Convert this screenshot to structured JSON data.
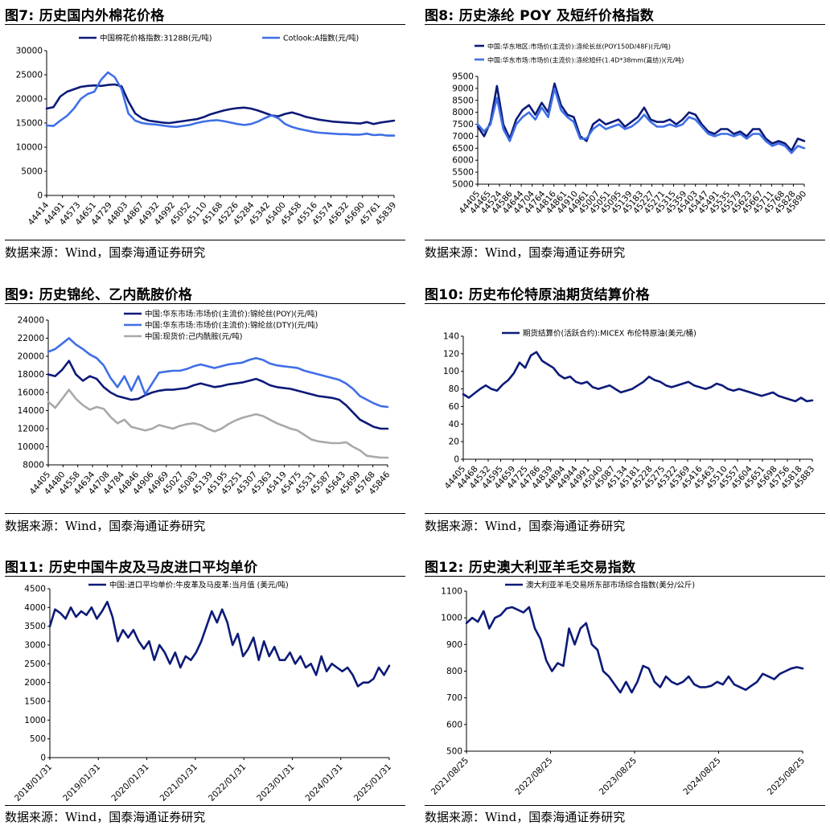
{
  "colors": {
    "dark": "#0c1a78",
    "mid": "#3f6fe6",
    "gray": "#a9a9a9"
  },
  "source": "数据来源：Wind，国泰海通证券研究",
  "panels": [
    {
      "title": "图7:  历史国内外棉花价格",
      "chart_data": {
        "type": "line",
        "ylim": [
          0,
          30000
        ],
        "yticks": [
          0,
          5000,
          10000,
          15000,
          20000,
          25000,
          30000
        ],
        "xticklabels": [
          "44414",
          "44491",
          "44573",
          "44651",
          "44729",
          "44803",
          "44867",
          "44932",
          "44992",
          "45052",
          "45110",
          "45168",
          "45226",
          "45284",
          "45342",
          "45400",
          "45458",
          "45516",
          "45574",
          "45632",
          "45690",
          "45761",
          "45839"
        ],
        "series": [
          {
            "name": "中国棉花价格指数:3128B(元/吨)",
            "color": "dark",
            "values": [
              18000,
              18300,
              20500,
              21500,
              22000,
              22500,
              22700,
              22800,
              22700,
              22900,
              23000,
              22600,
              19500,
              17000,
              16000,
              15500,
              15300,
              15100,
              15000,
              15200,
              15400,
              15600,
              15800,
              16200,
              16800,
              17200,
              17600,
              17900,
              18100,
              18200,
              18000,
              17600,
              17100,
              16600,
              16400,
              16900,
              17200,
              16800,
              16300,
              16000,
              15700,
              15500,
              15300,
              15200,
              15100,
              15000,
              14900,
              15200,
              14800,
              15100,
              15300,
              15500
            ]
          },
          {
            "name": "Cotlook:A指数(元/吨)",
            "color": "mid",
            "values": [
              14500,
              14400,
              15500,
              16500,
              18000,
              20000,
              21000,
              21500,
              24000,
              25500,
              24500,
              22000,
              17000,
              15500,
              15000,
              14800,
              14700,
              14500,
              14300,
              14200,
              14400,
              14600,
              15000,
              15300,
              15500,
              15600,
              15400,
              15100,
              14800,
              14600,
              14800,
              15300,
              16000,
              16600,
              16000,
              14800,
              14200,
              13800,
              13500,
              13200,
              13000,
              12900,
              12800,
              12700,
              12700,
              12600,
              12600,
              12800,
              12500,
              12600,
              12400,
              12400
            ]
          }
        ]
      }
    },
    {
      "title": "图8:  历史涤纶 POY 及短纤价格指数",
      "chart_data": {
        "type": "line",
        "ylim": [
          5000,
          9500
        ],
        "yticks": [
          5000,
          5500,
          6000,
          6500,
          7000,
          7500,
          8000,
          8500,
          9000,
          9500
        ],
        "xticklabels": [
          "44405",
          "44465",
          "44524",
          "44586",
          "44644",
          "44704",
          "44764",
          "44816",
          "44861",
          "44910",
          "44961",
          "45007",
          "45051",
          "45095",
          "45139",
          "45183",
          "45227",
          "45271",
          "45315",
          "45359",
          "45403",
          "45447",
          "45491",
          "45535",
          "45579",
          "45623",
          "45667",
          "45711",
          "45768",
          "45828",
          "45890"
        ],
        "series": [
          {
            "name": "中国:华东地区:市场价(主流价):涤纶长丝(POY150D/48F)(元/吨)",
            "color": "dark",
            "values": [
              7400,
              7000,
              7600,
              9100,
              7500,
              6900,
              7700,
              8100,
              8300,
              7900,
              8400,
              8000,
              9200,
              8300,
              7900,
              7800,
              7000,
              6800,
              7500,
              7700,
              7500,
              7600,
              7700,
              7400,
              7600,
              7800,
              8200,
              7700,
              7600,
              7600,
              7700,
              7500,
              7700,
              8000,
              7900,
              7500,
              7200,
              7100,
              7300,
              7300,
              7100,
              7200,
              7000,
              7300,
              7300,
              6900,
              6700,
              6800,
              6700,
              6400,
              6900,
              6800
            ]
          },
          {
            "name": "中国:华东市场:市场价(主流价):涤纶短纤(1.4D*38mm(直纺))(元/吨)",
            "color": "mid",
            "values": [
              7500,
              7200,
              7500,
              8600,
              7300,
              6800,
              7500,
              7800,
              8000,
              7700,
              8200,
              7800,
              9000,
              8100,
              7800,
              7600,
              6900,
              6900,
              7300,
              7500,
              7300,
              7400,
              7500,
              7300,
              7400,
              7600,
              7900,
              7600,
              7400,
              7400,
              7500,
              7400,
              7500,
              7800,
              7700,
              7400,
              7100,
              7000,
              7100,
              7100,
              7000,
              7100,
              6900,
              7100,
              7100,
              6800,
              6600,
              6700,
              6600,
              6300,
              6600,
              6500
            ]
          }
        ]
      }
    },
    {
      "title": "图9:  历史锦纶、乙内酰胺价格",
      "chart_data": {
        "type": "line",
        "ylim": [
          8000,
          24000
        ],
        "yticks": [
          8000,
          10000,
          12000,
          14000,
          16000,
          18000,
          20000,
          22000,
          24000
        ],
        "xticklabels": [
          "44405",
          "44480",
          "44558",
          "44634",
          "44708",
          "44784",
          "44846",
          "44906",
          "44969",
          "45027",
          "45083",
          "45139",
          "45195",
          "45251",
          "45307",
          "45363",
          "45419",
          "45475",
          "45531",
          "45587",
          "45643",
          "45699",
          "45768",
          "45846"
        ],
        "series": [
          {
            "name": "中国:华东市场:市场价(主流价):锦纶丝(POY)(元/吨)",
            "color": "dark",
            "values": [
              18000,
              17800,
              18500,
              19500,
              18000,
              17300,
              17800,
              17500,
              16600,
              16000,
              15600,
              15400,
              15200,
              15300,
              15700,
              16000,
              16200,
              16300,
              16300,
              16400,
              16500,
              16800,
              17000,
              16800,
              16600,
              16700,
              16900,
              17000,
              17100,
              17300,
              17500,
              17200,
              16800,
              16600,
              16500,
              16400,
              16200,
              16000,
              15800,
              15600,
              15500,
              15400,
              15200,
              14600,
              13800,
              13000,
              12600,
              12200,
              12000,
              12000
            ]
          },
          {
            "name": "中国:华东市场:市场价(主流价):锦纶丝(DTY)(元/吨)",
            "color": "mid",
            "values": [
              20500,
              20800,
              21400,
              22000,
              21300,
              20800,
              20200,
              19800,
              19000,
              17600,
              16600,
              17800,
              16200,
              17800,
              15800,
              17000,
              18200,
              18300,
              18400,
              18400,
              18600,
              18900,
              19100,
              18900,
              18700,
              18900,
              19100,
              19200,
              19300,
              19600,
              19800,
              19600,
              19200,
              19000,
              18900,
              18800,
              18700,
              18400,
              18200,
              18000,
              17800,
              17600,
              17400,
              17000,
              16400,
              15600,
              15200,
              14800,
              14500,
              14400
            ]
          },
          {
            "name": "中国:现货价:己内酰胺(元/吨)",
            "color": "gray",
            "values": [
              15000,
              14300,
              15300,
              16300,
              15300,
              14600,
              14100,
              14400,
              14200,
              13300,
              12600,
              13000,
              12200,
              12000,
              11800,
              12000,
              12400,
              12200,
              12000,
              12300,
              12500,
              12600,
              12400,
              12000,
              11700,
              12000,
              12500,
              12900,
              13200,
              13400,
              13600,
              13400,
              13000,
              12600,
              12300,
              12000,
              11800,
              11300,
              10800,
              10600,
              10500,
              10400,
              10400,
              10500,
              10000,
              9600,
              9000,
              8900,
              8800,
              8800
            ]
          }
        ]
      }
    },
    {
      "title": "图10:  历史布伦特原油期货结算价格",
      "chart_data": {
        "type": "line",
        "ylim": [
          0,
          140
        ],
        "yticks": [
          0,
          20,
          40,
          60,
          80,
          100,
          120,
          140
        ],
        "xticklabels": [
          "44405",
          "44468",
          "44532",
          "44595",
          "44659",
          "44725",
          "44786",
          "44839",
          "44894",
          "44944",
          "44991",
          "45040",
          "45087",
          "45134",
          "45181",
          "45228",
          "45275",
          "45322",
          "45369",
          "45416",
          "45463",
          "45510",
          "45557",
          "45604",
          "45651",
          "45698",
          "45756",
          "45818",
          "45883"
        ],
        "series": [
          {
            "name": "期货结算价(活跃合约):MICEX 布伦特原油(美元/桶)",
            "color": "dark",
            "values": [
              74,
              70,
              75,
              80,
              84,
              80,
              78,
              85,
              90,
              98,
              110,
              104,
              118,
              122,
              112,
              108,
              104,
              96,
              92,
              94,
              88,
              86,
              88,
              82,
              80,
              82,
              84,
              80,
              76,
              78,
              80,
              84,
              88,
              94,
              90,
              88,
              84,
              82,
              84,
              86,
              88,
              84,
              82,
              80,
              82,
              86,
              84,
              80,
              78,
              80,
              78,
              76,
              74,
              72,
              74,
              76,
              72,
              70,
              68,
              66,
              70,
              66,
              67
            ]
          }
        ]
      }
    },
    {
      "title": "图11:  历史中国牛皮及马皮进口平均单价",
      "chart_data": {
        "type": "line",
        "ylim": [
          0,
          4500
        ],
        "yticks": [
          0,
          500,
          1000,
          1500,
          2000,
          2500,
          3000,
          3500,
          4000,
          4500
        ],
        "xticklabels": [
          "2018/01/31",
          "2019/01/31",
          "2020/01/31",
          "2021/01/31",
          "2022/01/31",
          "2023/01/31",
          "2024/01/31",
          "2025/01/31"
        ],
        "series": [
          {
            "name": "中国:进口平均单价:牛皮革及马皮革:当月值 (美元/吨)",
            "color": "dark",
            "values": [
              3500,
              3950,
              3850,
              3700,
              4000,
              3750,
              3900,
              3800,
              4000,
              3700,
              3900,
              4150,
              3750,
              3100,
              3400,
              3200,
              3400,
              3100,
              2900,
              3100,
              2600,
              3000,
              2800,
              2500,
              2800,
              2400,
              2700,
              2600,
              2800,
              3100,
              3500,
              3900,
              3600,
              3950,
              3600,
              3000,
              3300,
              2700,
              2900,
              3200,
              2600,
              3100,
              2700,
              2950,
              2600,
              2600,
              2800,
              2500,
              2700,
              2400,
              2500,
              2200,
              2700,
              2300,
              2500,
              2400,
              2300,
              2400,
              2200,
              1900,
              2000,
              2000,
              2100,
              2400,
              2200,
              2450
            ]
          }
        ]
      }
    },
    {
      "title": "图12:  历史澳大利亚羊毛交易指数",
      "chart_data": {
        "type": "line",
        "ylim": [
          500,
          1100
        ],
        "yticks": [
          500,
          600,
          700,
          800,
          900,
          1000,
          1100
        ],
        "xticklabels": [
          "2021/08/25",
          "2022/08/25",
          "2023/08/25",
          "2024/08/25",
          "2025/08/25"
        ],
        "series": [
          {
            "name": "澳大利亚羊毛交易所东部市场综合指数(美分/公斤)",
            "color": "dark",
            "values": [
              980,
              1000,
              985,
              1025,
              960,
              1000,
              1010,
              1035,
              1040,
              1030,
              1020,
              1040,
              960,
              920,
              840,
              800,
              830,
              820,
              960,
              900,
              960,
              980,
              900,
              880,
              800,
              780,
              750,
              720,
              760,
              720,
              760,
              820,
              810,
              760,
              740,
              780,
              760,
              750,
              760,
              780,
              750,
              740,
              740,
              745,
              760,
              750,
              780,
              750,
              740,
              730,
              745,
              760,
              790,
              780,
              770,
              790,
              800,
              810,
              815,
              810
            ]
          }
        ]
      }
    }
  ]
}
